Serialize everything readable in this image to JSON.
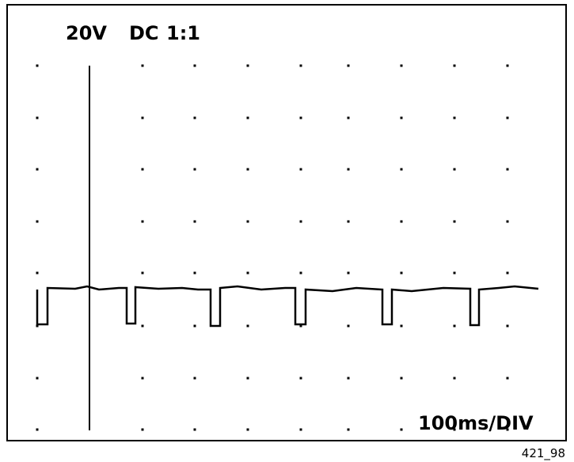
{
  "header": {
    "volts": "20V",
    "coupling": "DC",
    "probe": "1:1"
  },
  "timebase": "100ms/DIV",
  "figure_id": "421_98"
}
